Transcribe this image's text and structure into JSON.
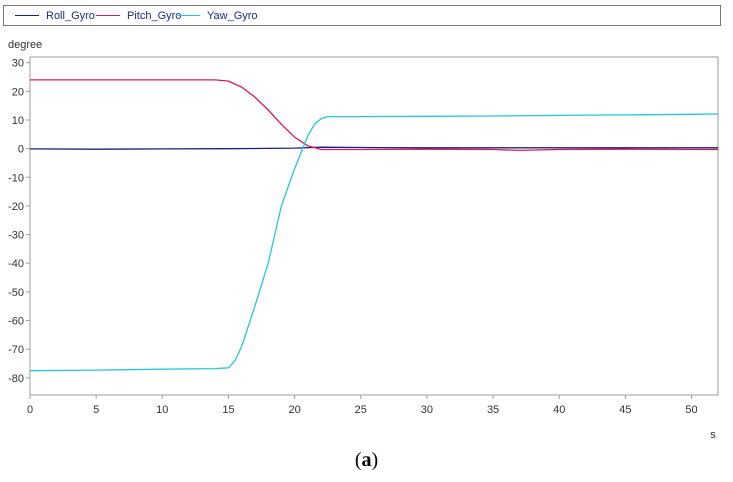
{
  "chart_data": {
    "type": "line",
    "xlabel": "s",
    "ylabel": "degree",
    "xlim": [
      0,
      52
    ],
    "ylim": [
      -86,
      32
    ],
    "xticks": [
      0,
      5,
      10,
      15,
      20,
      25,
      30,
      35,
      40,
      45,
      50
    ],
    "yticks": [
      30,
      20,
      10,
      0,
      -10,
      -20,
      -30,
      -40,
      -50,
      -60,
      -70,
      -80
    ],
    "grid": false,
    "legend": "top",
    "series": [
      {
        "name": "Roll_Gyro",
        "color": "#1a237e",
        "x": [
          0,
          5,
          10,
          15,
          18,
          20,
          22,
          25,
          30,
          35,
          40,
          45,
          50,
          52
        ],
        "y": [
          -0.1,
          -0.2,
          -0.1,
          0.0,
          0.1,
          0.2,
          0.5,
          0.4,
          0.3,
          0.3,
          0.3,
          0.3,
          0.3,
          0.3
        ]
      },
      {
        "name": "Pitch_Gyro",
        "color": "#d81b60",
        "x": [
          0,
          5,
          10,
          14,
          15,
          16,
          17,
          18,
          19,
          20,
          21,
          22,
          25,
          30,
          35,
          37,
          40,
          45,
          50,
          52
        ],
        "y": [
          24,
          24,
          24,
          24,
          23.6,
          21.5,
          18,
          13.5,
          8.5,
          4,
          1,
          -0.3,
          -0.3,
          -0.2,
          -0.3,
          -0.6,
          -0.3,
          -0.2,
          -0.3,
          -0.3
        ]
      },
      {
        "name": "Yaw_Gyro",
        "color": "#26c6da",
        "x": [
          0,
          5,
          10,
          14,
          15,
          15.5,
          16,
          17,
          18,
          19,
          20,
          21,
          21.5,
          22,
          22.5,
          25,
          30,
          35,
          40,
          45,
          50,
          52
        ],
        "y": [
          -77.5,
          -77.3,
          -77,
          -76.8,
          -76.5,
          -74,
          -69,
          -55,
          -40,
          -20,
          -7,
          4.5,
          8.5,
          10.5,
          11.2,
          11.2,
          11.3,
          11.4,
          11.6,
          11.8,
          12.0,
          12.1
        ]
      }
    ]
  },
  "caption": {
    "open": "(",
    "letter": "a",
    "close": ")"
  }
}
